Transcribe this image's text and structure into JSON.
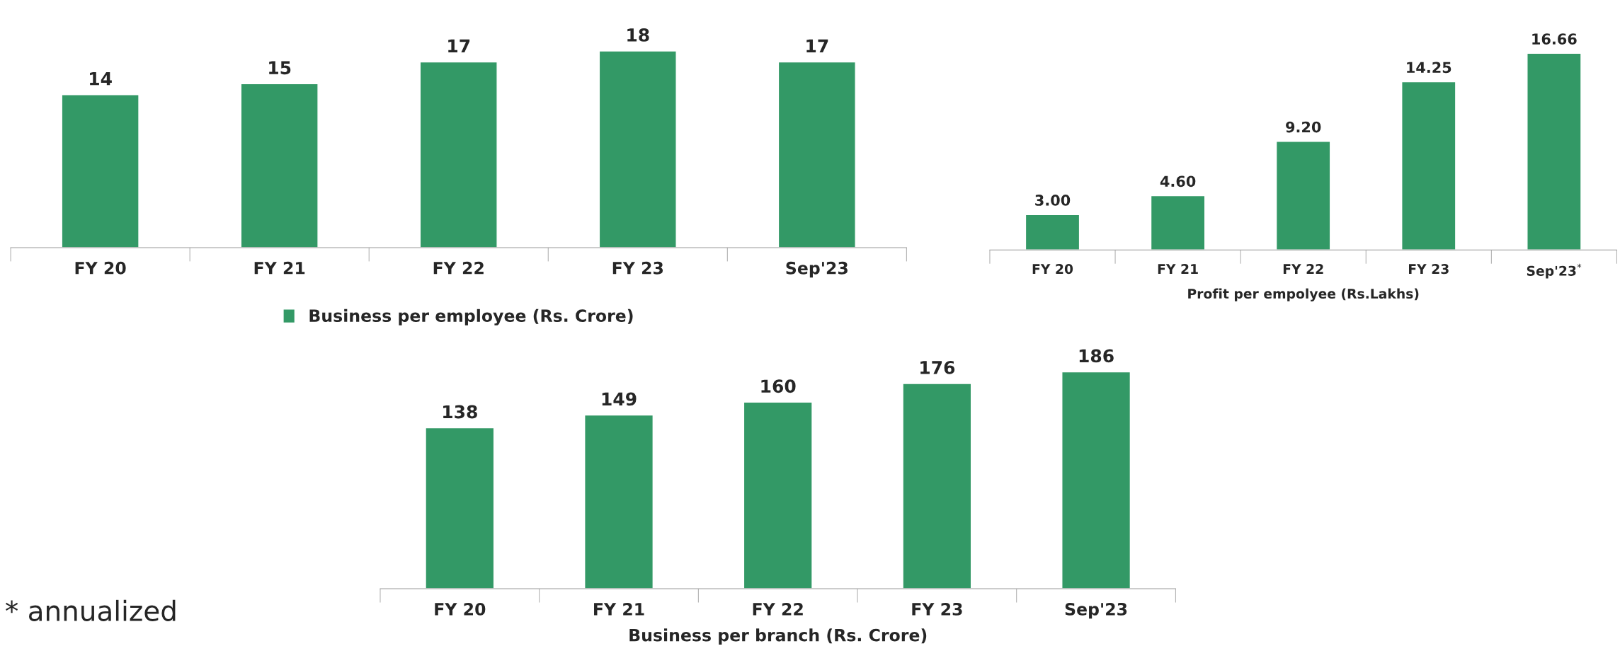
{
  "chart_data": [
    {
      "type": "bar",
      "categories": [
        "FY 20",
        "FY 21",
        "FY 22",
        "FY 23",
        "Sep'23"
      ],
      "series": [
        {
          "name": "Business per employee (Rs. Crore)",
          "color": "#339966",
          "values": [
            14,
            15,
            17,
            18,
            17
          ]
        }
      ],
      "data_labels": true,
      "legend": "bottom",
      "grid": false
    },
    {
      "type": "bar",
      "categories": [
        "FY 20",
        "FY 21",
        "FY 22",
        "FY 23",
        "Sep'23$^{*}$"
      ],
      "xlabel": "Profit per empolyee (Rs.Lakhs)",
      "series": [
        {
          "color": "#339966",
          "values": [
            3.0,
            4.6,
            9.2,
            14.25,
            16.66
          ],
          "value_labels": [
            "3.00",
            "4.60",
            "9.20",
            "14.25",
            "16.66"
          ]
        }
      ],
      "grid": false
    },
    {
      "type": "bar",
      "categories": [
        "FY 20",
        "FY 21",
        "FY 22",
        "FY 23",
        "Sep'23"
      ],
      "xlabel": "Business per branch (Rs. Crore)",
      "series": [
        {
          "color": "#339966",
          "values": [
            138,
            149,
            160,
            176,
            186
          ]
        }
      ],
      "data_labels": true,
      "grid": false,
      "annotations": [
        "* annualized"
      ]
    }
  ]
}
